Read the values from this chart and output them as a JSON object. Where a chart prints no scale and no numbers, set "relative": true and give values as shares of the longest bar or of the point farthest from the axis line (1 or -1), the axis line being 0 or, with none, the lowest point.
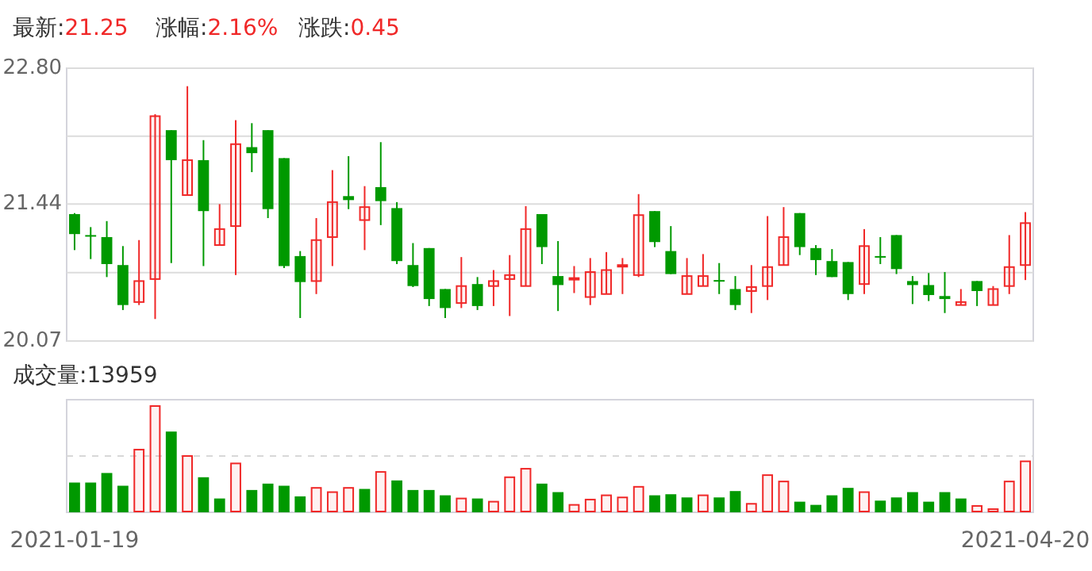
{
  "chart_data": [
    {
      "type": "candlestick",
      "annotations": [
        "最新:21.25",
        "涨幅:2.16%",
        "涨跌:0.45"
      ],
      "categories": [
        null,
        null,
        null,
        null,
        null,
        null,
        null,
        null,
        null,
        null,
        null,
        null,
        null,
        null,
        null,
        null,
        null,
        null,
        null,
        null,
        null,
        null,
        null,
        null,
        null,
        null,
        null,
        null,
        null,
        null,
        null,
        null,
        null,
        null,
        null,
        null,
        null,
        null,
        null,
        null,
        null,
        null,
        null,
        null,
        null,
        null,
        null,
        null,
        null,
        null,
        null,
        null,
        null,
        null,
        null,
        null,
        null,
        null,
        null,
        null
      ],
      "ohlc": [
        [
          21.34,
          21.35,
          20.98,
          21.14
        ],
        [
          21.13,
          21.21,
          20.89,
          21.12
        ],
        [
          21.11,
          21.27,
          20.71,
          20.84
        ],
        [
          20.83,
          21.02,
          20.38,
          20.43
        ],
        [
          20.46,
          21.08,
          20.43,
          20.67
        ],
        [
          20.69,
          22.34,
          20.29,
          22.32
        ],
        [
          22.18,
          22.18,
          20.85,
          21.88
        ],
        [
          21.53,
          22.62,
          21.53,
          21.88
        ],
        [
          21.88,
          22.08,
          20.82,
          21.37
        ],
        [
          21.03,
          21.44,
          21.03,
          21.19
        ],
        [
          21.22,
          22.28,
          20.73,
          22.04
        ],
        [
          22.01,
          22.25,
          21.76,
          21.95
        ],
        [
          22.18,
          22.18,
          21.3,
          21.39
        ],
        [
          21.9,
          21.9,
          20.8,
          20.82
        ],
        [
          20.92,
          20.97,
          20.3,
          20.66
        ],
        [
          20.67,
          21.3,
          20.54,
          21.08
        ],
        [
          21.11,
          21.78,
          20.82,
          21.46
        ],
        [
          21.52,
          21.92,
          21.39,
          21.48
        ],
        [
          21.28,
          21.62,
          20.98,
          21.41
        ],
        [
          21.61,
          22.06,
          21.23,
          21.47
        ],
        [
          21.4,
          21.46,
          20.84,
          20.87
        ],
        [
          20.83,
          21.05,
          20.61,
          20.62
        ],
        [
          21.0,
          21.0,
          20.42,
          20.49
        ],
        [
          20.59,
          20.59,
          20.3,
          20.4
        ],
        [
          20.45,
          20.91,
          20.4,
          20.62
        ],
        [
          20.64,
          20.71,
          20.38,
          20.42
        ],
        [
          20.62,
          20.78,
          20.42,
          20.67
        ],
        [
          20.69,
          20.93,
          20.32,
          20.73
        ],
        [
          20.62,
          21.42,
          20.62,
          21.19
        ],
        [
          21.34,
          21.34,
          20.84,
          21.01
        ],
        [
          20.72,
          21.07,
          20.37,
          20.63
        ],
        [
          20.69,
          20.82,
          20.55,
          20.7
        ],
        [
          20.51,
          20.9,
          20.43,
          20.76
        ],
        [
          20.54,
          20.96,
          20.54,
          20.78
        ],
        [
          20.82,
          20.9,
          20.54,
          20.83
        ],
        [
          20.73,
          21.54,
          20.71,
          21.33
        ],
        [
          21.37,
          21.37,
          21.01,
          21.06
        ],
        [
          20.97,
          21.22,
          20.74,
          20.74
        ],
        [
          20.54,
          20.9,
          20.54,
          20.72
        ],
        [
          20.62,
          20.94,
          20.62,
          20.72
        ],
        [
          20.68,
          20.85,
          20.54,
          20.67
        ],
        [
          20.59,
          20.72,
          20.38,
          20.43
        ],
        [
          20.57,
          20.83,
          20.35,
          20.61
        ],
        [
          20.62,
          21.32,
          20.48,
          20.81
        ],
        [
          20.83,
          21.41,
          20.83,
          21.11
        ],
        [
          21.35,
          21.35,
          20.93,
          21.01
        ],
        [
          21.0,
          21.03,
          20.73,
          20.88
        ],
        [
          20.87,
          20.99,
          20.71,
          20.71
        ],
        [
          20.86,
          20.86,
          20.48,
          20.54
        ],
        [
          20.64,
          21.19,
          20.54,
          21.02
        ],
        [
          20.92,
          21.11,
          20.84,
          20.91
        ],
        [
          21.13,
          21.13,
          20.74,
          20.79
        ],
        [
          20.67,
          20.72,
          20.44,
          20.63
        ],
        [
          20.63,
          20.75,
          20.47,
          20.53
        ],
        [
          20.52,
          20.76,
          20.35,
          20.49
        ],
        [
          20.43,
          20.59,
          20.43,
          20.46
        ],
        [
          20.67,
          20.67,
          20.42,
          20.57
        ],
        [
          20.43,
          20.62,
          20.43,
          20.59
        ],
        [
          20.62,
          21.13,
          20.54,
          20.81
        ],
        [
          20.83,
          21.36,
          20.68,
          21.25
        ]
      ],
      "colors": [
        "#009900",
        "#009900",
        "#009900",
        "#009900",
        "#f02828",
        "#f02828",
        "#009900",
        "#f02828",
        "#009900",
        "#f02828",
        "#f02828",
        "#009900",
        "#009900",
        "#009900",
        "#009900",
        "#f02828",
        "#f02828",
        "#009900",
        "#f02828",
        "#009900",
        "#009900",
        "#009900",
        "#009900",
        "#009900",
        "#f02828",
        "#009900",
        "#f02828",
        "#f02828",
        "#f02828",
        "#009900",
        "#009900",
        "#f02828",
        "#f02828",
        "#f02828",
        "#f02828",
        "#f02828",
        "#009900",
        "#009900",
        "#f02828",
        "#f02828",
        "#009900",
        "#009900",
        "#f02828",
        "#f02828",
        "#f02828",
        "#009900",
        "#009900",
        "#009900",
        "#009900",
        "#f02828",
        "#009900",
        "#009900",
        "#009900",
        "#009900",
        "#009900",
        "#f02828",
        "#009900",
        "#f02828",
        "#f02828",
        "#f02828"
      ],
      "ylim": [
        20.07,
        22.8
      ],
      "yticks": [
        {
          "value": 20.07,
          "label": "20.07"
        },
        {
          "value": 20.755,
          "label": null
        },
        {
          "value": 21.44,
          "label": "21.44"
        },
        {
          "value": 22.12,
          "label": null
        },
        {
          "value": 22.8,
          "label": "22.80"
        }
      ],
      "grid": "y",
      "tick_labels": "y"
    },
    {
      "type": "bar",
      "title": "成交量:13959",
      "relative": true,
      "ref_lines": [
        {
          "axis": "y",
          "value": 0.53,
          "label": null,
          "color": "#d8d8d8",
          "line_style": "dashed"
        }
      ],
      "categories": [
        "2021-01-19",
        null,
        null,
        null,
        null,
        null,
        null,
        null,
        null,
        null,
        null,
        null,
        null,
        null,
        null,
        null,
        null,
        null,
        null,
        null,
        null,
        null,
        null,
        null,
        null,
        null,
        null,
        null,
        null,
        null,
        null,
        null,
        null,
        null,
        null,
        null,
        null,
        null,
        null,
        null,
        null,
        null,
        null,
        null,
        null,
        null,
        null,
        null,
        null,
        null,
        null,
        null,
        null,
        null,
        null,
        null,
        null,
        null,
        null,
        "2021-04-20"
      ],
      "values": [
        0.28,
        0.28,
        0.37,
        0.25,
        0.59,
        1,
        0.76,
        0.53,
        0.33,
        0.13,
        0.46,
        0.21,
        0.27,
        0.25,
        0.15,
        0.23,
        0.19,
        0.23,
        0.22,
        0.38,
        0.3,
        0.21,
        0.21,
        0.16,
        0.13,
        0.13,
        0.1,
        0.33,
        0.41,
        0.27,
        0.19,
        0.07,
        0.12,
        0.16,
        0.14,
        0.24,
        0.16,
        0.17,
        0.14,
        0.16,
        0.14,
        0.2,
        0.08,
        0.35,
        0.29,
        0.1,
        0.07,
        0.16,
        0.23,
        0.19,
        0.11,
        0.14,
        0.19,
        0.1,
        0.19,
        0.13,
        0.06,
        0.03,
        0.29,
        0.48
      ],
      "colors": [
        "#009900",
        "#009900",
        "#009900",
        "#009900",
        "#f02828",
        "#f02828",
        "#009900",
        "#f02828",
        "#009900",
        "#009900",
        "#f02828",
        "#009900",
        "#009900",
        "#009900",
        "#009900",
        "#f02828",
        "#f02828",
        "#f02828",
        "#009900",
        "#f02828",
        "#009900",
        "#009900",
        "#009900",
        "#009900",
        "#f02828",
        "#009900",
        "#f02828",
        "#f02828",
        "#f02828",
        "#009900",
        "#009900",
        "#f02828",
        "#f02828",
        "#f02828",
        "#f02828",
        "#f02828",
        "#009900",
        "#009900",
        "#009900",
        "#f02828",
        "#009900",
        "#009900",
        "#f02828",
        "#f02828",
        "#f02828",
        "#009900",
        "#009900",
        "#009900",
        "#009900",
        "#f02828",
        "#009900",
        "#009900",
        "#009900",
        "#009900",
        "#009900",
        "#009900",
        "#f02828",
        "#f02828",
        "#f02828",
        "#f02828"
      ]
    }
  ]
}
